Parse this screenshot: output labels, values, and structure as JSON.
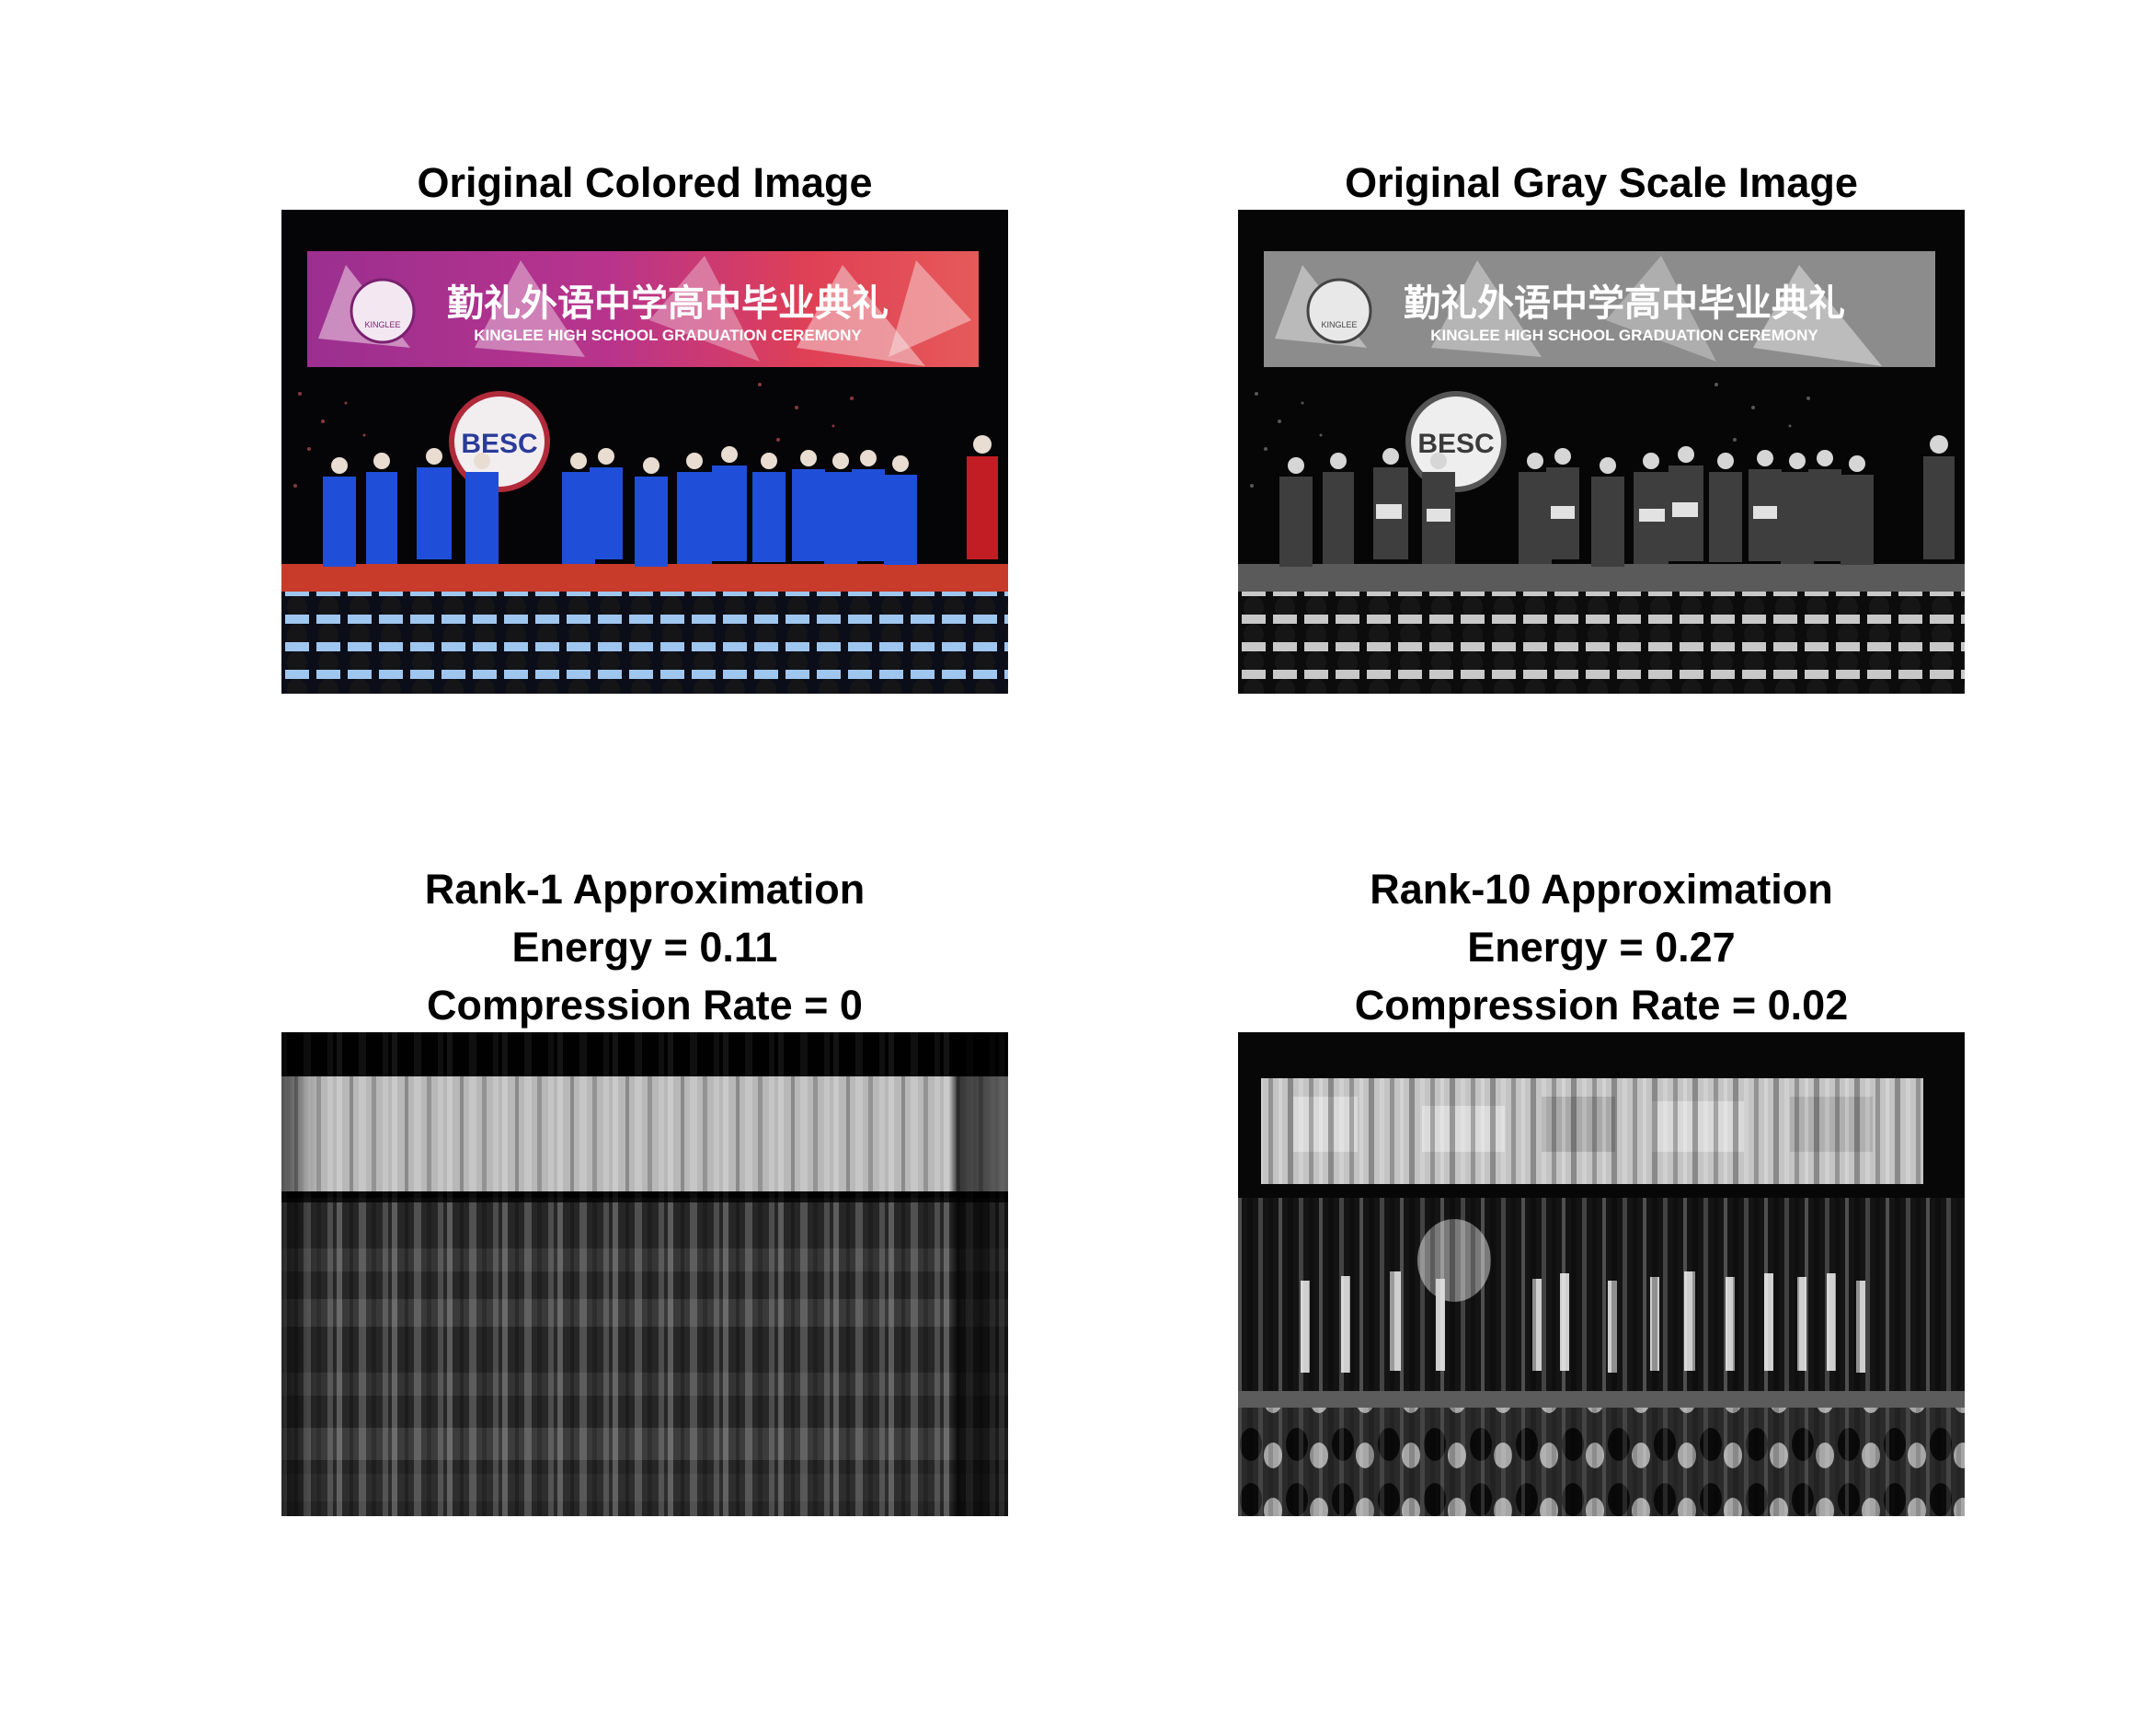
{
  "panels": [
    {
      "title_lines": [
        "Original Colored Image"
      ],
      "image_description": "Graduation ceremony stage with students in blue gowns under a banner",
      "banner_text_cn": "勤礼外语中学高中毕业典礼",
      "banner_text_en": "KINGLEE HIGH SCHOOL GRADUATION CEREMONY",
      "logo_text": "BESC",
      "seal_text": "KINGLEE",
      "mode": "color"
    },
    {
      "title_lines": [
        "Original Gray Scale Image"
      ],
      "image_description": "Grayscale version of the graduation ceremony photo",
      "banner_text_cn": "勤礼外语中学高中毕业典礼",
      "banner_text_en": "KINGLEE HIGH SCHOOL GRADUATION CEREMONY",
      "logo_text": "BESC",
      "seal_text": "KINGLEE",
      "mode": "gray"
    },
    {
      "title_lines": [
        "Rank-1 Approximation",
        "Energy = 0.11",
        "Compression Rate = 0"
      ],
      "image_description": "Rank-1 SVD reconstruction: blurred horizontal and vertical bands",
      "mode": "rank1",
      "rank": 1,
      "energy": 0.11,
      "compression_rate": 0
    },
    {
      "title_lines": [
        "Rank-10 Approximation",
        "Energy = 0.27",
        "Compression Rate = 0.02"
      ],
      "image_description": "Rank-10 SVD reconstruction: blurry banner, figures and audience",
      "mode": "rank10",
      "rank": 10,
      "energy": 0.27,
      "compression_rate": 0.02
    }
  ],
  "colors": {
    "gown_blue": "#1f4fd8",
    "banner_magenta": "#a0308a",
    "banner_red": "#e0404a",
    "stage_red": "#c83a2a",
    "audience_lightblue": "#9fc6ee"
  }
}
